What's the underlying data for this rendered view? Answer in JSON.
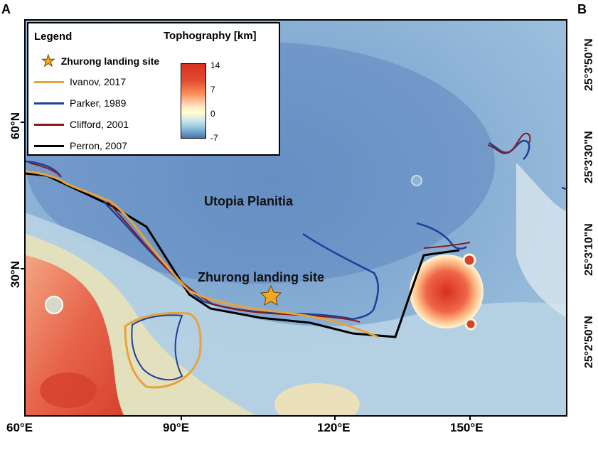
{
  "panels": {
    "a": "A",
    "b": "B"
  },
  "map": {
    "region_label": "Utopia Planitia",
    "site_label": "Zhurong landing site",
    "lat_labels": [
      "60°N",
      "30°N"
    ],
    "lon_labels": [
      "60°E",
      "90°E",
      "120°E",
      "150°E"
    ]
  },
  "legend": {
    "title": "Legend",
    "topo_title": "Tophography [km]",
    "site_entry": "Zhurong landing site",
    "items": [
      {
        "label": "Ivanov, 2017",
        "color": "#e8a33a"
      },
      {
        "label": "Parker, 1989",
        "color": "#1f3f99"
      },
      {
        "label": "Clifford, 2001",
        "color": "#8b1a1a"
      },
      {
        "label": "Perron, 2007",
        "color": "#000000"
      }
    ],
    "colorbar_ticks": [
      "14",
      "7",
      "0",
      "-7"
    ]
  },
  "panel_b_coords": [
    "25°3'50\"N",
    "25°3'30\"N",
    "25°3'10\"N",
    "25°2'50\"N"
  ]
}
